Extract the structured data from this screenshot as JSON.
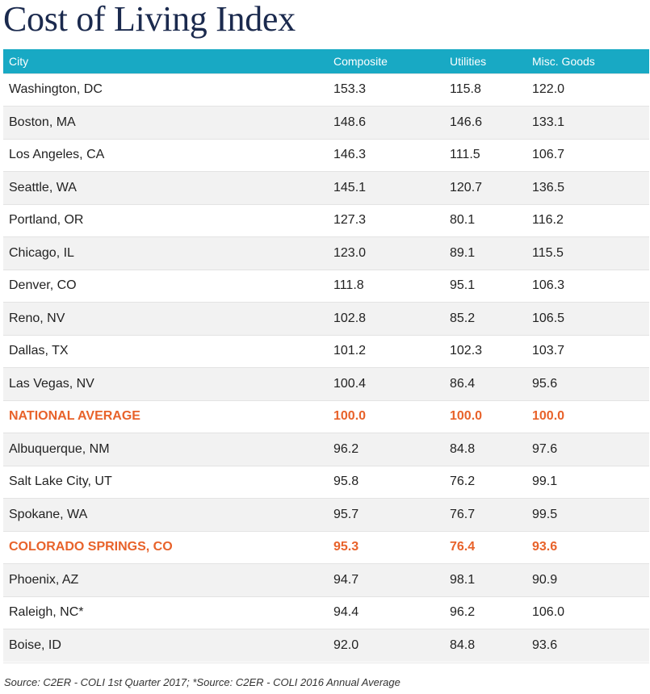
{
  "title": "Cost of Living Index",
  "table": {
    "headers": {
      "city": "City",
      "composite": "Composite",
      "utilities": "Utilities",
      "misc": "Misc. Goods"
    },
    "rows": [
      {
        "city": "Washington, DC",
        "composite": "153.3",
        "utilities": "115.8",
        "misc": "122.0",
        "highlight": false
      },
      {
        "city": "Boston, MA",
        "composite": "148.6",
        "utilities": "146.6",
        "misc": "133.1",
        "highlight": false
      },
      {
        "city": "Los Angeles, CA",
        "composite": "146.3",
        "utilities": "111.5",
        "misc": "106.7",
        "highlight": false
      },
      {
        "city": "Seattle, WA",
        "composite": "145.1",
        "utilities": "120.7",
        "misc": "136.5",
        "highlight": false
      },
      {
        "city": "Portland, OR",
        "composite": "127.3",
        "utilities": "80.1",
        "misc": "116.2",
        "highlight": false
      },
      {
        "city": "Chicago, IL",
        "composite": "123.0",
        "utilities": "89.1",
        "misc": "115.5",
        "highlight": false
      },
      {
        "city": "Denver, CO",
        "composite": "111.8",
        "utilities": "95.1",
        "misc": "106.3",
        "highlight": false
      },
      {
        "city": "Reno, NV",
        "composite": "102.8",
        "utilities": "85.2",
        "misc": "106.5",
        "highlight": false
      },
      {
        "city": "Dallas, TX",
        "composite": "101.2",
        "utilities": "102.3",
        "misc": "103.7",
        "highlight": false
      },
      {
        "city": "Las Vegas, NV",
        "composite": "100.4",
        "utilities": "86.4",
        "misc": "95.6",
        "highlight": false
      },
      {
        "city": "NATIONAL AVERAGE",
        "composite": "100.0",
        "utilities": "100.0",
        "misc": "100.0",
        "highlight": true
      },
      {
        "city": "Albuquerque, NM",
        "composite": "96.2",
        "utilities": "84.8",
        "misc": "97.6",
        "highlight": false
      },
      {
        "city": "Salt Lake City, UT",
        "composite": "95.8",
        "utilities": "76.2",
        "misc": "99.1",
        "highlight": false
      },
      {
        "city": "Spokane, WA",
        "composite": "95.7",
        "utilities": "76.7",
        "misc": "99.5",
        "highlight": false
      },
      {
        "city": "COLORADO SPRINGS, CO",
        "composite": "95.3",
        "utilities": "76.4",
        "misc": "93.6",
        "highlight": true
      },
      {
        "city": "Phoenix, AZ",
        "composite": "94.7",
        "utilities": "98.1",
        "misc": "90.9",
        "highlight": false
      },
      {
        "city": "Raleigh, NC*",
        "composite": "94.4",
        "utilities": "96.2",
        "misc": "106.0",
        "highlight": false
      },
      {
        "city": "Boise, ID",
        "composite": "92.0",
        "utilities": "84.8",
        "misc": "93.6",
        "highlight": false
      }
    ]
  },
  "source": "Source: C2ER - COLI 1st Quarter 2017; *Source: C2ER - COLI 2016 Annual Average",
  "colors": {
    "header_bg": "#18a9c4",
    "title": "#1b2a4e",
    "highlight": "#e8622a",
    "stripe": "#f2f2f2"
  }
}
